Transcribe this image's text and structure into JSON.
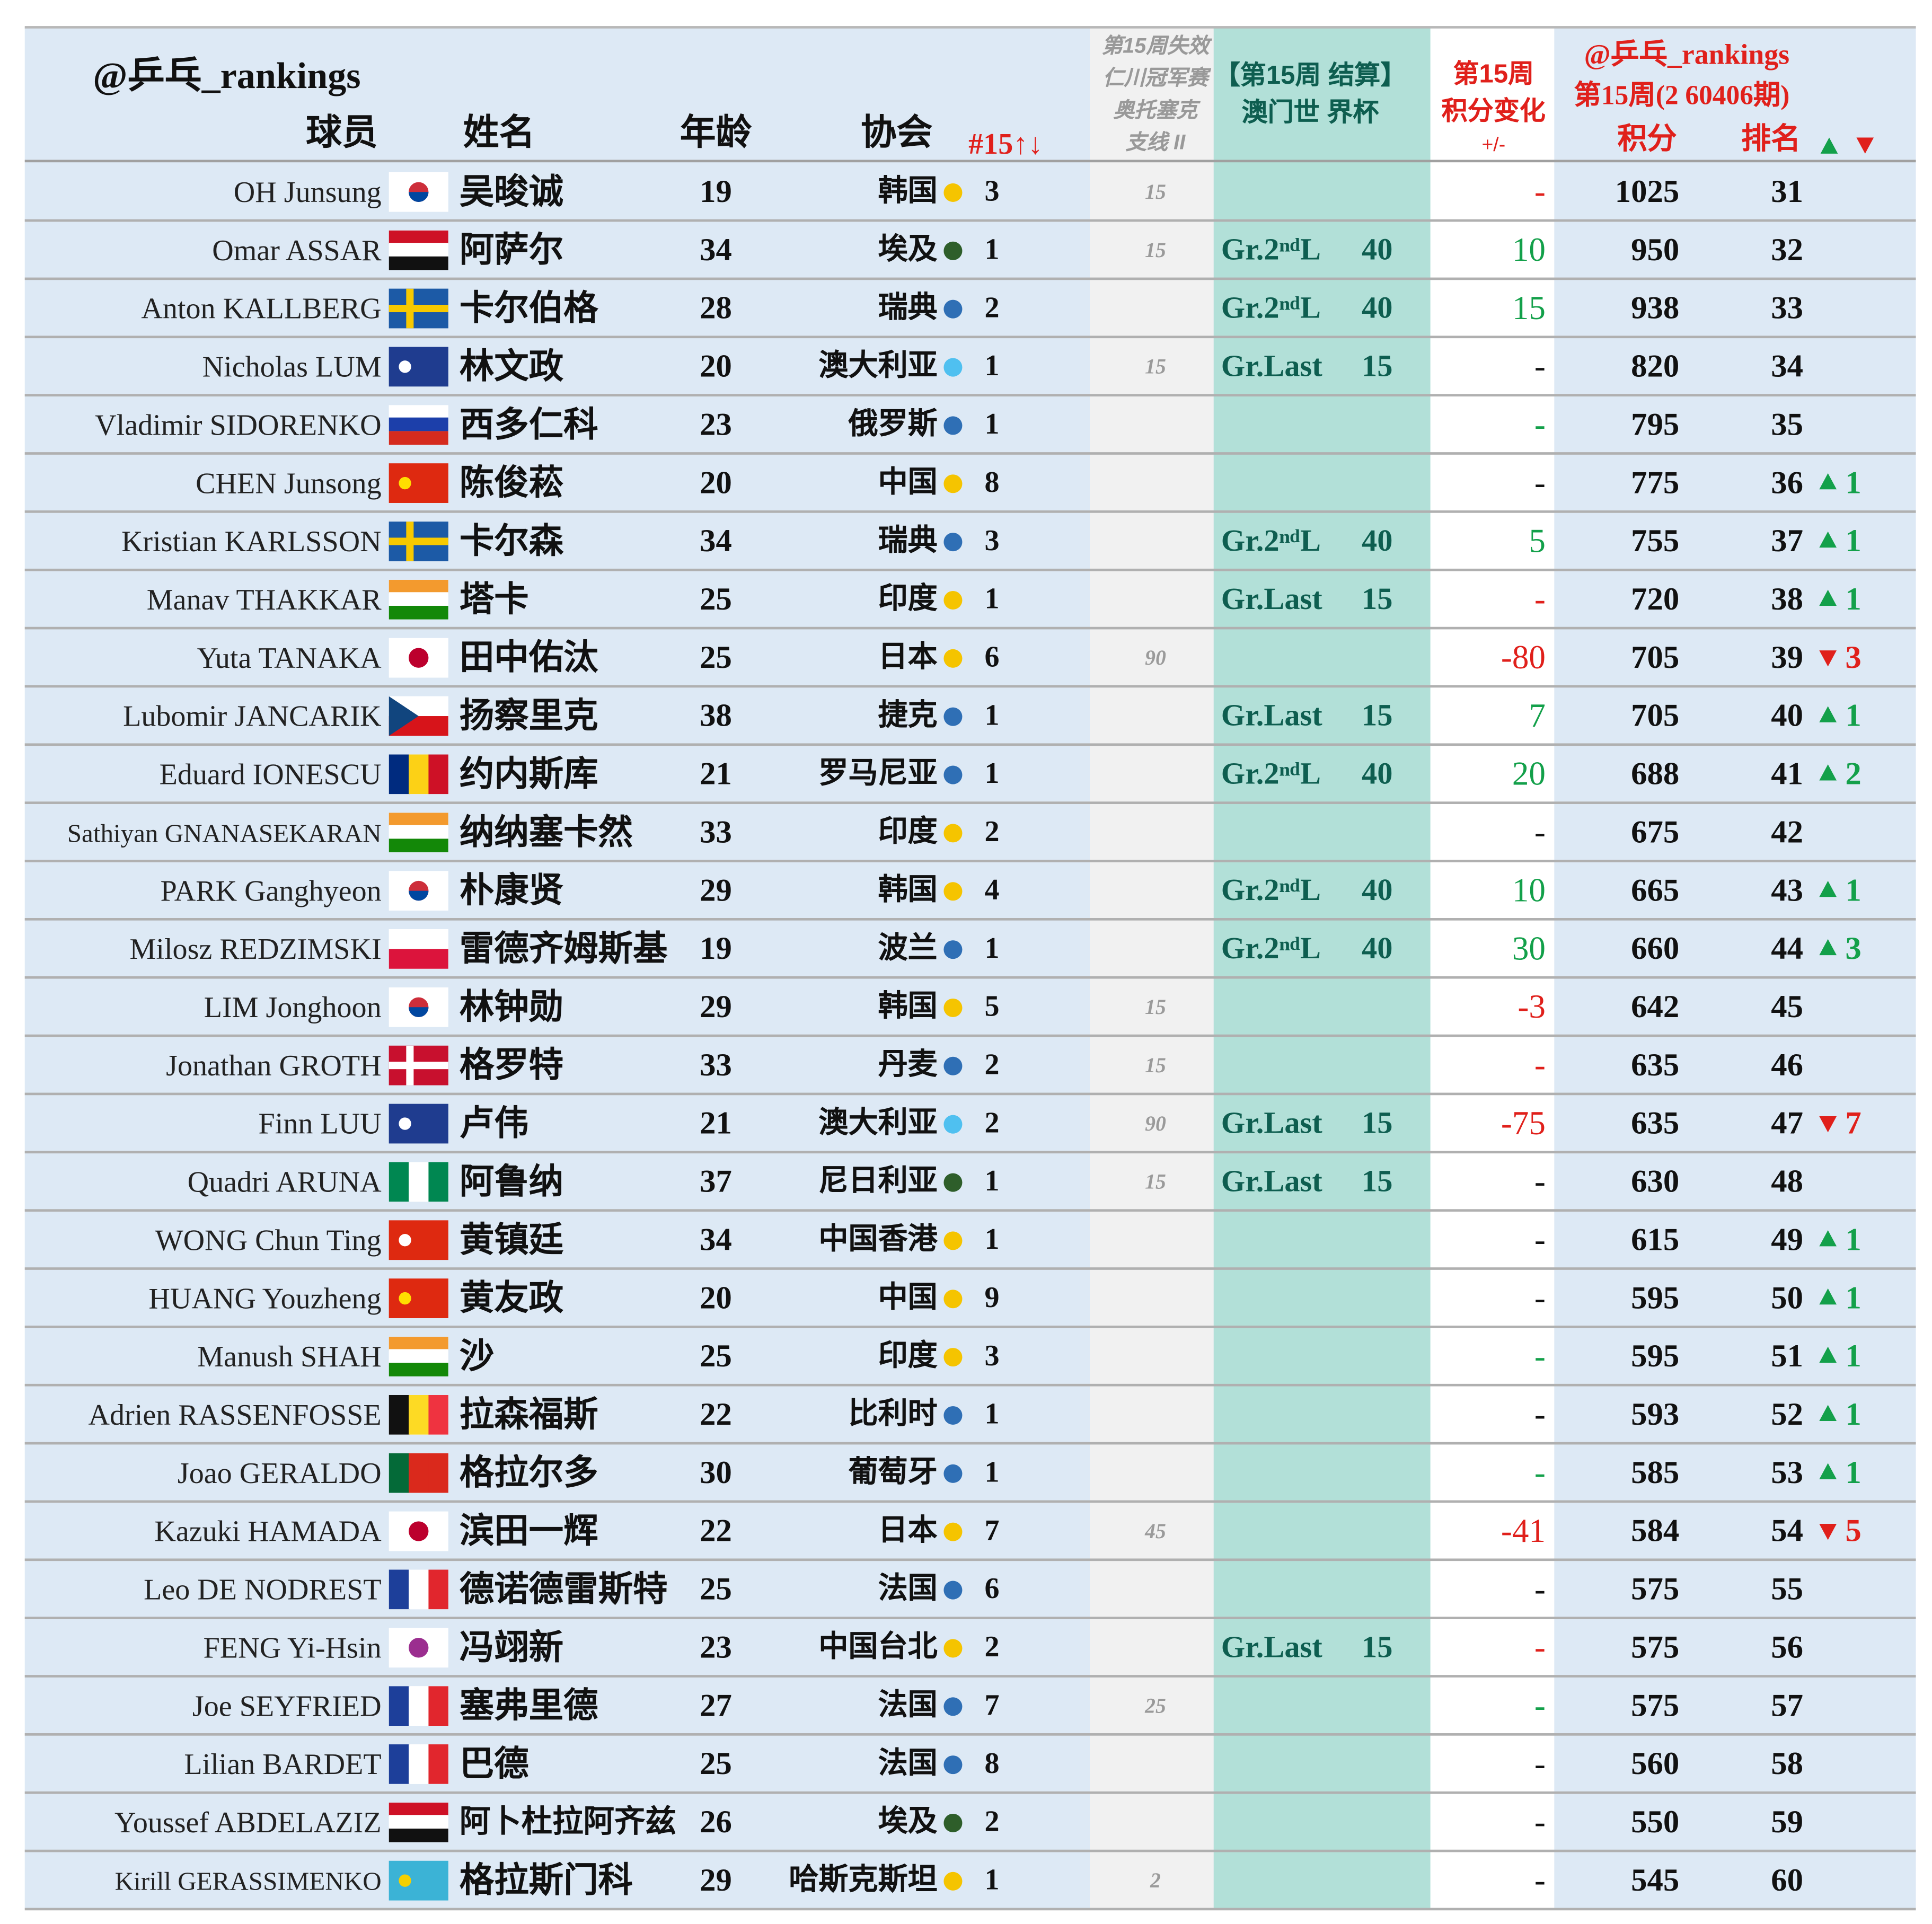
{
  "header": {
    "handle": "@乒乓_rankings",
    "player": "球员",
    "name": "姓名",
    "age": "年龄",
    "assoc": "协会",
    "count": "#15↑↓",
    "expired": [
      "第15周失效",
      "仁川冠军赛",
      "奥托塞克",
      "支线 II"
    ],
    "result": [
      "【第15周 结算】",
      "澳门世 界杯"
    ],
    "change": [
      "第15周",
      "积分变化",
      "+/-"
    ],
    "ranking": [
      "@乒乓_rankings",
      "第15周(2 60406期)"
    ],
    "points": "积分",
    "rank": "排名"
  },
  "table": {
    "rows": [
      {
        "en": "OH Junsung",
        "cn": "吴晙诚",
        "age": 19,
        "assoc": "韩国",
        "dot": "#f5c400",
        "count": 3,
        "expired": 15,
        "change": "-",
        "change_color": "#e0201b",
        "points": 1025,
        "rank": 31
      },
      {
        "en": "Omar ASSAR",
        "cn": "阿萨尔",
        "age": 34,
        "assoc": "埃及",
        "dot": "#2e5e2a",
        "count": 1,
        "expired": 15,
        "result": "Gr.2ⁿᵈL",
        "result_pts": 40,
        "change": 10,
        "change_color": "#13a04a",
        "points": 950,
        "rank": 32
      },
      {
        "en": "Anton KALLBERG",
        "cn": "卡尔伯格",
        "age": 28,
        "assoc": "瑞典",
        "dot": "#2f6fb5",
        "count": 2,
        "result": "Gr.2ⁿᵈL",
        "result_pts": 40,
        "change": 15,
        "change_color": "#13a04a",
        "points": 938,
        "rank": 33
      },
      {
        "en": "Nicholas LUM",
        "cn": "林文政",
        "age": 20,
        "assoc": "澳大利亚",
        "dot": "#4fc0f0",
        "count": 1,
        "expired": 15,
        "result": "Gr.Last",
        "result_pts": 15,
        "change": "-",
        "change_color": "#111111",
        "points": 820,
        "rank": 34
      },
      {
        "en": "Vladimir SIDORENKO",
        "cn": "西多仁科",
        "age": 23,
        "assoc": "俄罗斯",
        "dot": "#2f6fb5",
        "count": 1,
        "change": "-",
        "change_color": "#13a04a",
        "points": 795,
        "rank": 35
      },
      {
        "en": "CHEN Junsong",
        "cn": "陈俊菘",
        "age": 20,
        "assoc": "中国",
        "dot": "#f5c400",
        "count": 8,
        "change": "-",
        "change_color": "#111111",
        "points": 775,
        "rank": 36,
        "move_up": 1
      },
      {
        "en": "Kristian KARLSSON",
        "cn": "卡尔森",
        "age": 34,
        "assoc": "瑞典",
        "dot": "#2f6fb5",
        "count": 3,
        "result": "Gr.2ⁿᵈL",
        "result_pts": 40,
        "change": 5,
        "change_color": "#13a04a",
        "points": 755,
        "rank": 37,
        "move_up": 1
      },
      {
        "en": "Manav THAKKAR",
        "cn": "塔卡",
        "age": 25,
        "assoc": "印度",
        "dot": "#f5c400",
        "count": 1,
        "result": "Gr.Last",
        "result_pts": 15,
        "change": "-",
        "change_color": "#e0201b",
        "points": 720,
        "rank": 38,
        "move_up": 1
      },
      {
        "en": "Yuta TANAKA",
        "cn": "田中佑汰",
        "age": 25,
        "assoc": "日本",
        "dot": "#f5c400",
        "count": 6,
        "expired": 90,
        "change": -80,
        "change_color": "#e0201b",
        "points": 705,
        "rank": 39,
        "move_down": 3
      },
      {
        "en": "Lubomir JANCARIK",
        "cn": "扬察里克",
        "age": 38,
        "assoc": "捷克",
        "dot": "#2f6fb5",
        "count": 1,
        "result": "Gr.Last",
        "result_pts": 15,
        "change": 7,
        "change_color": "#13a04a",
        "points": 705,
        "rank": 40,
        "move_up": 1
      },
      {
        "en": "Eduard IONESCU",
        "cn": "约内斯库",
        "age": 21,
        "assoc": "罗马尼亚",
        "dot": "#2f6fb5",
        "count": 1,
        "result": "Gr.2ⁿᵈL",
        "result_pts": 40,
        "change": 20,
        "change_color": "#13a04a",
        "points": 688,
        "rank": 41,
        "move_up": 2
      },
      {
        "en": "Sathiyan GNANASEKARAN",
        "cn": "纳纳塞卡然",
        "age": 33,
        "assoc": "印度",
        "dot": "#f5c400",
        "count": 2,
        "change": "-",
        "change_color": "#111111",
        "points": 675,
        "rank": 42
      },
      {
        "en": "PARK Ganghyeon",
        "cn": "朴康贤",
        "age": 29,
        "assoc": "韩国",
        "dot": "#f5c400",
        "count": 4,
        "result": "Gr.2ⁿᵈL",
        "result_pts": 40,
        "change": 10,
        "change_color": "#13a04a",
        "points": 665,
        "rank": 43,
        "move_up": 1
      },
      {
        "en": "Milosz REDZIMSKI",
        "cn": "雷德齐姆斯基",
        "age": 19,
        "assoc": "波兰",
        "dot": "#2f6fb5",
        "count": 1,
        "result": "Gr.2ⁿᵈL",
        "result_pts": 40,
        "change": 30,
        "change_color": "#13a04a",
        "points": 660,
        "rank": 44,
        "move_up": 3
      },
      {
        "en": "LIM Jonghoon",
        "cn": "林钟勋",
        "age": 29,
        "assoc": "韩国",
        "dot": "#f5c400",
        "count": 5,
        "expired": 15,
        "change": -3,
        "change_color": "#e0201b",
        "points": 642,
        "rank": 45
      },
      {
        "en": "Jonathan GROTH",
        "cn": "格罗特",
        "age": 33,
        "assoc": "丹麦",
        "dot": "#2f6fb5",
        "count": 2,
        "expired": 15,
        "change": "-",
        "change_color": "#e0201b",
        "points": 635,
        "rank": 46
      },
      {
        "en": "Finn LUU",
        "cn": "卢伟",
        "age": 21,
        "assoc": "澳大利亚",
        "dot": "#4fc0f0",
        "count": 2,
        "expired": 90,
        "result": "Gr.Last",
        "result_pts": 15,
        "change": -75,
        "change_color": "#e0201b",
        "points": 635,
        "rank": 47,
        "move_down": 7
      },
      {
        "en": "Quadri ARUNA",
        "cn": "阿鲁纳",
        "age": 37,
        "assoc": "尼日利亚",
        "dot": "#2e5e2a",
        "count": 1,
        "expired": 15,
        "result": "Gr.Last",
        "result_pts": 15,
        "change": "-",
        "change_color": "#111111",
        "points": 630,
        "rank": 48
      },
      {
        "en": "WONG Chun Ting",
        "cn": "黄镇廷",
        "age": 34,
        "assoc": "中国香港",
        "dot": "#f5c400",
        "count": 1,
        "change": "-",
        "change_color": "#111111",
        "points": 615,
        "rank": 49,
        "move_up": 1
      },
      {
        "en": "HUANG Youzheng",
        "cn": "黄友政",
        "age": 20,
        "assoc": "中国",
        "dot": "#f5c400",
        "count": 9,
        "change": "-",
        "change_color": "#111111",
        "points": 595,
        "rank": 50,
        "move_up": 1
      },
      {
        "en": "Manush SHAH",
        "cn": "沙",
        "age": 25,
        "assoc": "印度",
        "dot": "#f5c400",
        "count": 3,
        "change": "-",
        "change_color": "#13a04a",
        "points": 595,
        "rank": 51,
        "move_up": 1
      },
      {
        "en": "Adrien RASSENFOSSE",
        "cn": "拉森福斯",
        "age": 22,
        "assoc": "比利时",
        "dot": "#2f6fb5",
        "count": 1,
        "change": "-",
        "change_color": "#111111",
        "points": 593,
        "rank": 52,
        "move_up": 1
      },
      {
        "en": "Joao GERALDO",
        "cn": "格拉尔多",
        "age": 30,
        "assoc": "葡萄牙",
        "dot": "#2f6fb5",
        "count": 1,
        "change": "-",
        "change_color": "#13a04a",
        "points": 585,
        "rank": 53,
        "move_up": 1
      },
      {
        "en": "Kazuki HAMADA",
        "cn": "滨田一辉",
        "age": 22,
        "assoc": "日本",
        "dot": "#f5c400",
        "count": 7,
        "expired": 45,
        "change": -41,
        "change_color": "#e0201b",
        "points": 584,
        "rank": 54,
        "move_down": 5
      },
      {
        "en": "Leo DE NODREST",
        "cn": "德诺德雷斯特",
        "age": 25,
        "assoc": "法国",
        "dot": "#2f6fb5",
        "count": 6,
        "change": "-",
        "change_color": "#111111",
        "points": 575,
        "rank": 55
      },
      {
        "en": "FENG Yi-Hsin",
        "cn": "冯翊新",
        "age": 23,
        "assoc": "中国台北",
        "dot": "#f5c400",
        "count": 2,
        "result": "Gr.Last",
        "result_pts": 15,
        "change": "-",
        "change_color": "#e0201b",
        "points": 575,
        "rank": 56
      },
      {
        "en": "Joe SEYFRIED",
        "cn": "塞弗里德",
        "age": 27,
        "assoc": "法国",
        "dot": "#2f6fb5",
        "count": 7,
        "expired": 25,
        "change": "-",
        "change_color": "#13a04a",
        "points": 575,
        "rank": 57
      },
      {
        "en": "Lilian BARDET",
        "cn": "巴德",
        "age": 25,
        "assoc": "法国",
        "dot": "#2f6fb5",
        "count": 8,
        "change": "-",
        "change_color": "#111111",
        "points": 560,
        "rank": 58
      },
      {
        "en": "Youssef ABDELAZIZ",
        "cn": "阿卜杜拉阿齐兹",
        "age": 26,
        "assoc": "埃及",
        "dot": "#2e5e2a",
        "count": 2,
        "change": "-",
        "change_color": "#111111",
        "points": 550,
        "rank": 59
      },
      {
        "en": "Kirill GERASSIMENKO",
        "cn": "格拉斯门科",
        "age": 29,
        "assoc": "哈斯克斯坦",
        "dot": "#f5c400",
        "count": 1,
        "expired": 2,
        "change": "-",
        "change_color": "#111111",
        "points": 545,
        "rank": 60
      }
    ]
  }
}
